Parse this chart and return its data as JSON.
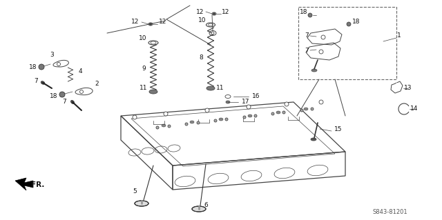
{
  "bg_color": "#ffffff",
  "line_color": "#1a1a1a",
  "gray": "#444444",
  "diagram_code": "S843-81201",
  "figsize": [
    6.4,
    3.19
  ],
  "dpi": 100
}
